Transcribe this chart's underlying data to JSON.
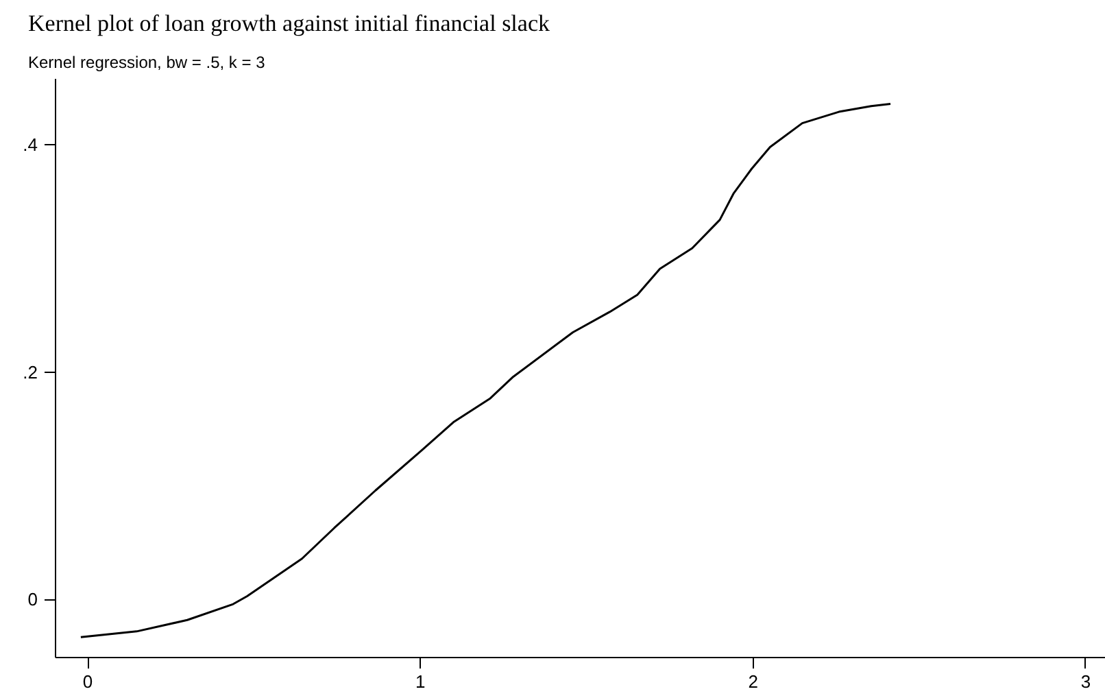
{
  "chart_data": {
    "type": "line",
    "title": "Kernel plot of loan growth against initial financial slack",
    "subtitle": "Kernel regression, bw = .5, k = 3",
    "x": [
      -0.021,
      0.147,
      0.299,
      0.437,
      0.479,
      0.644,
      0.741,
      0.865,
      1.003,
      1.099,
      1.21,
      1.279,
      1.458,
      1.569,
      1.652,
      1.72,
      1.817,
      1.9,
      1.941,
      1.996,
      2.051,
      2.148,
      2.258,
      2.355,
      2.413
    ],
    "series": [
      {
        "color": "#000000",
        "values": [
          -0.033,
          -0.028,
          -0.018,
          -0.004,
          0.003,
          0.036,
          0.063,
          0.096,
          0.131,
          0.156,
          0.177,
          0.196,
          0.235,
          0.253,
          0.268,
          0.291,
          0.309,
          0.334,
          0.357,
          0.379,
          0.398,
          0.419,
          0.429,
          0.434,
          0.436
        ]
      }
    ],
    "xlim": [
      -0.097,
      3.06
    ],
    "ylim": [
      -0.051,
      0.458
    ],
    "xticks": [
      0,
      1,
      2,
      3
    ],
    "yticks": [
      {
        "value": 0,
        "label": "0"
      },
      {
        "value": 0.2,
        "label": ".2"
      },
      {
        "value": 0.4,
        "label": ".4"
      }
    ],
    "grid": false,
    "line_style": "solid",
    "marker": "none"
  }
}
